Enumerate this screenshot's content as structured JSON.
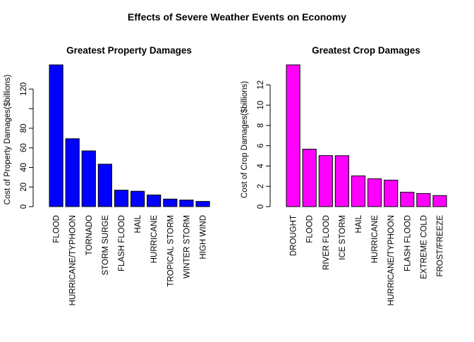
{
  "title": "Effects of Severe Weather Events on Economy",
  "chart_data": [
    {
      "type": "bar",
      "title": "Greatest Property Damages",
      "xlabel": "",
      "ylabel": "Cost of Property Damages($billions)",
      "color": "#0000FF",
      "categories": [
        "FLOOD",
        "HURRICANE/TYPHOON",
        "TORNADO",
        "STORM SURGE",
        "FLASH FLOOD",
        "HAIL",
        "HURRICANE",
        "TROPICAL STORM",
        "WINTER STORM",
        "HIGH WIND"
      ],
      "values": [
        144.7,
        69.3,
        56.9,
        43.3,
        16.8,
        15.7,
        11.9,
        7.7,
        6.7,
        5.3
      ],
      "ylim": [
        0,
        144.7
      ],
      "yticks": [
        0,
        20,
        40,
        60,
        80,
        100,
        120
      ],
      "ytick_labels": [
        "0",
        "20",
        "40",
        "60",
        "80",
        "",
        "120"
      ],
      "grid": false
    },
    {
      "type": "bar",
      "title": "Greatest Crop Damages",
      "xlabel": "",
      "ylabel": "Cost of Crop Damages($billions)",
      "color": "#FF00FF",
      "categories": [
        "DROUGHT",
        "FLOOD",
        "RIVER FLOOD",
        "ICE STORM",
        "HAIL",
        "HURRICANE",
        "HURRICANE/TYPHOON",
        "FLASH FLOOD",
        "EXTREME COLD",
        "FROST/FREEZE"
      ],
      "values": [
        13.97,
        5.66,
        5.03,
        5.02,
        3.03,
        2.74,
        2.61,
        1.42,
        1.29,
        1.09
      ],
      "ylim": [
        0,
        13.97
      ],
      "yticks": [
        0,
        2,
        4,
        6,
        8,
        10,
        12
      ],
      "ytick_labels": [
        "0",
        "2",
        "4",
        "6",
        "8",
        "10",
        "12"
      ],
      "grid": false
    }
  ]
}
